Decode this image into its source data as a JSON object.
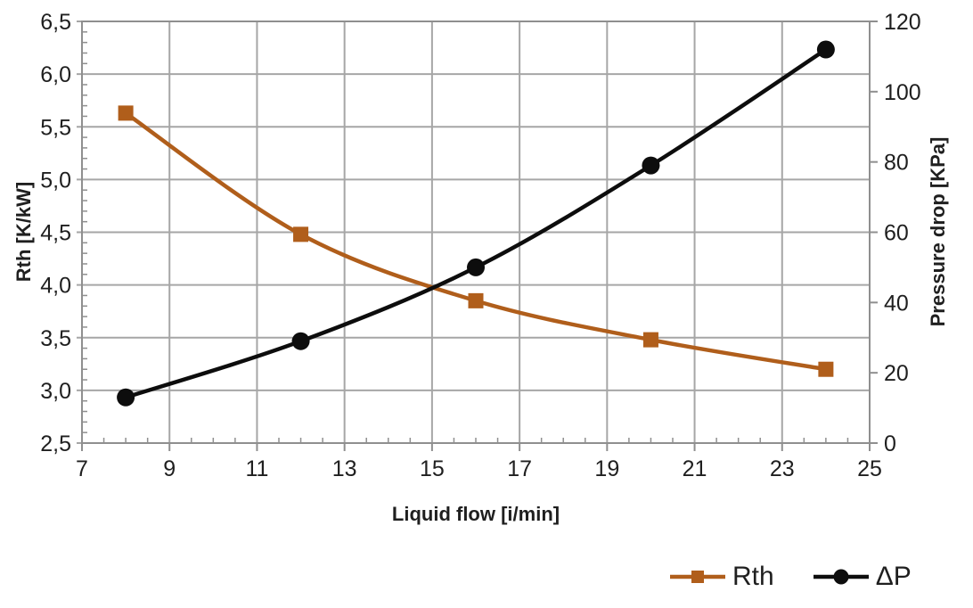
{
  "chart_data": {
    "type": "line",
    "title": "",
    "x": [
      8,
      12,
      16,
      20,
      24
    ],
    "series": [
      {
        "name": "Rth",
        "axis": "left",
        "marker": "square",
        "color": "#B05E1B",
        "values": [
          5.63,
          4.48,
          3.85,
          3.48,
          3.2
        ]
      },
      {
        "name": "ΔP",
        "axis": "right",
        "marker": "circle",
        "color": "#0d0d0d",
        "values": [
          13,
          29,
          50,
          79,
          112
        ]
      }
    ],
    "x_axis": {
      "title": "Liquid flow [i/min]",
      "min": 7,
      "max": 25,
      "major_step": 2,
      "minor_step": 0.5,
      "tick_labels": [
        "7",
        "9",
        "11",
        "13",
        "15",
        "17",
        "19",
        "21",
        "23",
        "25"
      ]
    },
    "left_axis": {
      "title": "Rth [K/kW]",
      "min": 2.5,
      "max": 6.5,
      "major_step": 0.5,
      "minor_step": 0.1,
      "tick_labels": [
        "2,5",
        "3,0",
        "3,5",
        "4,0",
        "4,5",
        "5,0",
        "5,5",
        "6,0",
        "6,5"
      ]
    },
    "right_axis": {
      "title": "Pressure drop [KPa]",
      "min": 0,
      "max": 120,
      "major_step": 20,
      "tick_labels": [
        "0",
        "20",
        "40",
        "60",
        "80",
        "100",
        "120"
      ]
    },
    "grid": {
      "horizontal": true,
      "vertical": true,
      "color": "#A6A6A6"
    },
    "legend_position": "bottom-right"
  },
  "colors": {
    "grid": "#A6A6A6",
    "spine": "#8f8f8f",
    "text": "#1f1f1f",
    "background": "#ffffff"
  }
}
